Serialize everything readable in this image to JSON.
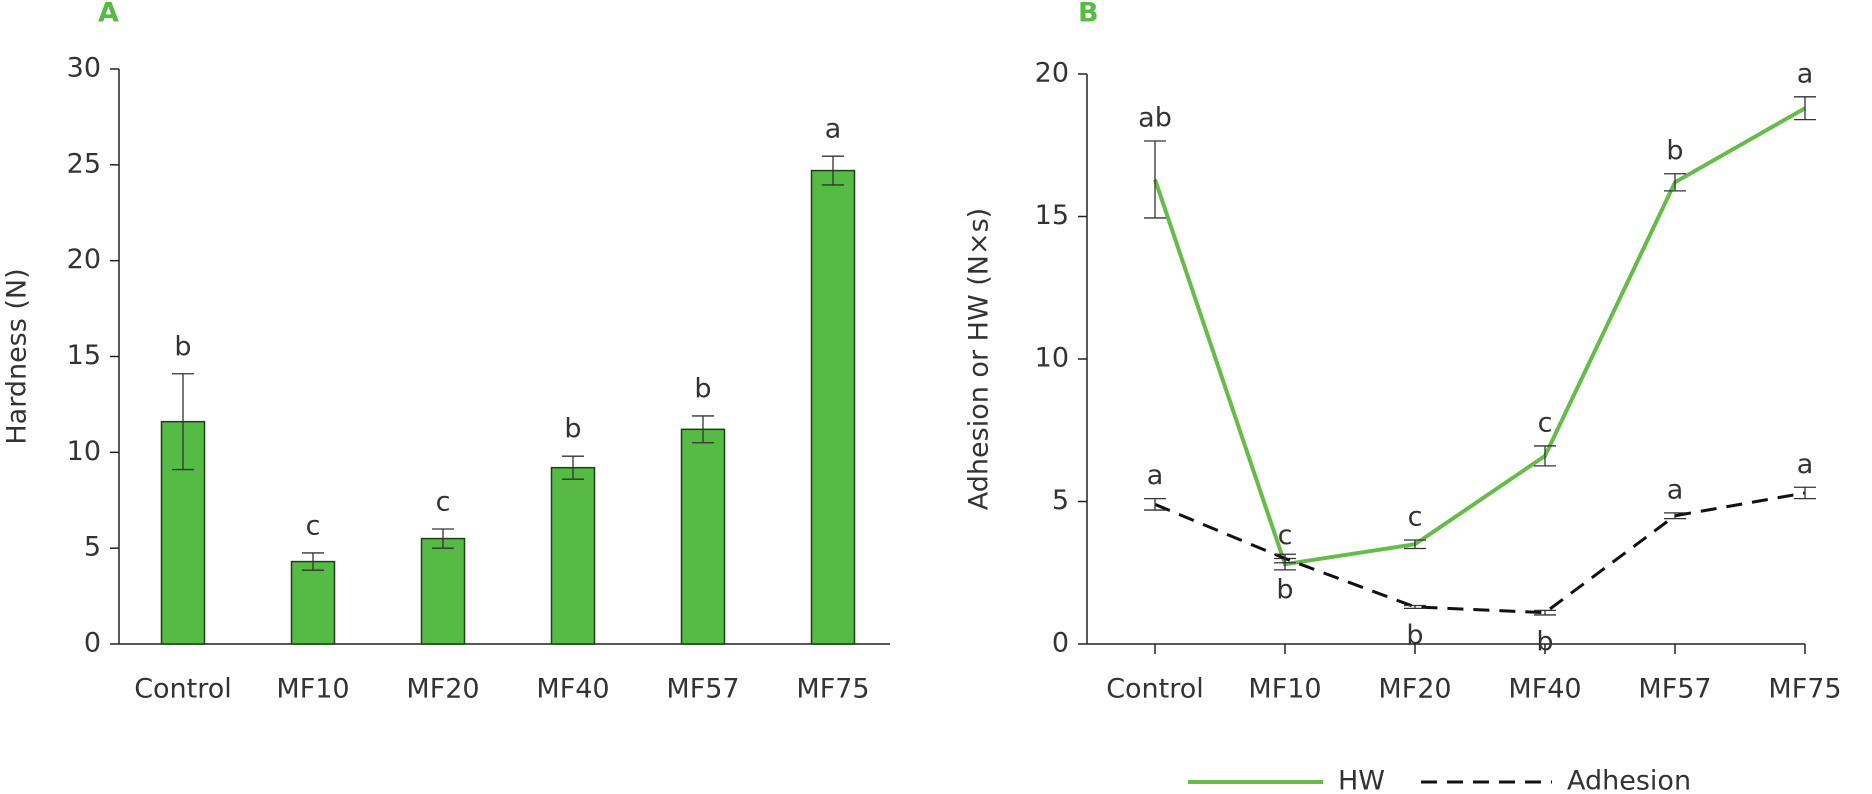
{
  "chart_data": [
    {
      "type": "bar",
      "panel_label": "A",
      "y_label": "Hardness (N)",
      "categories": [
        "Control",
        "MF10",
        "MF20",
        "MF40",
        "MF57",
        "MF75"
      ],
      "values": [
        11.6,
        4.3,
        5.5,
        9.2,
        11.2,
        24.7
      ],
      "errors": [
        2.5,
        0.45,
        0.5,
        0.6,
        0.7,
        0.75
      ],
      "letters": [
        "b",
        "c",
        "c",
        "b",
        "b",
        "a"
      ],
      "color": "#55bb45",
      "ylim": [
        0,
        30
      ],
      "yticks": [
        0,
        5,
        10,
        15,
        20,
        25,
        30
      ]
    },
    {
      "type": "line",
      "panel_label": "B",
      "y_label": "Adhesion or HW (N×s)",
      "categories": [
        "Control",
        "MF10",
        "MF20",
        "MF40",
        "MF57",
        "MF75"
      ],
      "series": [
        {
          "name": "HW",
          "color": "#66bb4a",
          "linestyle": "solid",
          "values": [
            16.3,
            2.8,
            3.5,
            6.6,
            16.2,
            18.8
          ],
          "errors": [
            1.35,
            0.2,
            0.15,
            0.35,
            0.3,
            0.4
          ],
          "letters": [
            "ab",
            "c",
            "c",
            "c",
            "b",
            "a"
          ]
        },
        {
          "name": "Adhesion",
          "color": "#111111",
          "linestyle": "dashed",
          "values": [
            4.9,
            3.0,
            1.3,
            1.1,
            4.5,
            5.3
          ],
          "errors": [
            0.2,
            0.15,
            0.05,
            0.08,
            0.1,
            0.2
          ],
          "letters": [
            "a",
            "b",
            "b",
            "b",
            "a",
            "a"
          ]
        }
      ],
      "legend": "bottom",
      "ylim": [
        0,
        20
      ],
      "yticks": [
        0,
        5,
        10,
        15,
        20
      ]
    }
  ]
}
